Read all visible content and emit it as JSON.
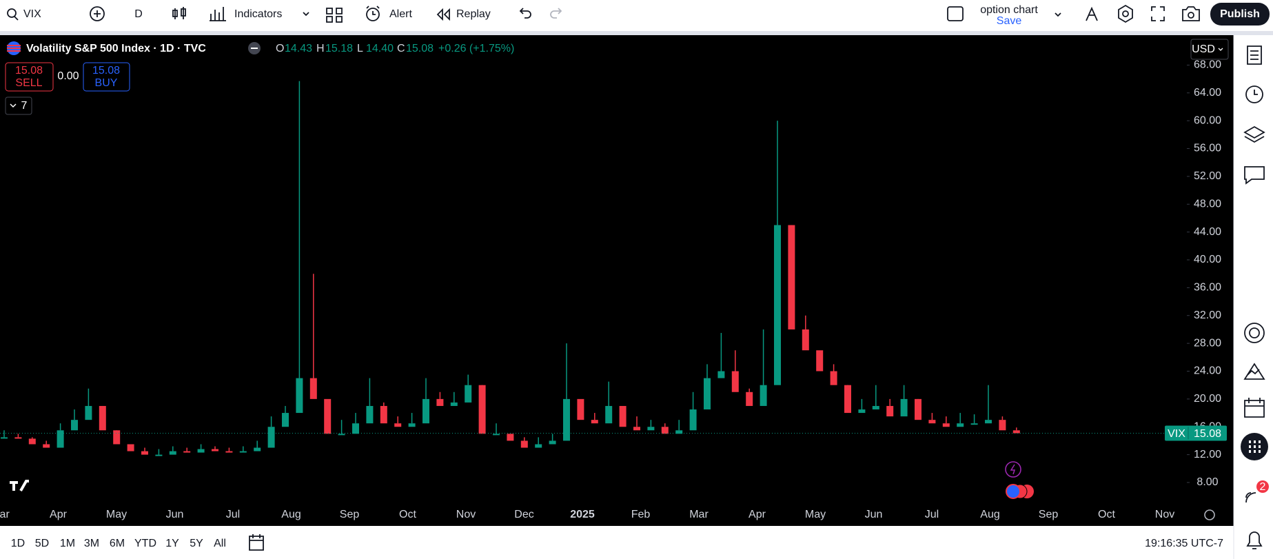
{
  "toolbar": {
    "symbol": "VIX",
    "interval": "D",
    "indicators": "Indicators",
    "alert": "Alert",
    "replay": "Replay",
    "layout_name": "option chart",
    "layout_status": "Save",
    "publish": "Publish"
  },
  "legend": {
    "title": "Volatility S&P 500 Index · 1D · TVC",
    "ohlc": [
      {
        "label": "O",
        "value": "14.43"
      },
      {
        "label": "H",
        "value": "15.18"
      },
      {
        "label": "L",
        "value": "14.40"
      },
      {
        "label": "C",
        "value": "15.08"
      }
    ],
    "change": "+0.26 (+1.75%)"
  },
  "trade": {
    "sell_price": "15.08",
    "sell": "SELL",
    "spread": "0.00",
    "buy_price": "15.08",
    "buy": "BUY"
  },
  "indicators_count": "7",
  "currency": "USD",
  "chart_data": {
    "type": "candlestick",
    "series": [
      {
        "name": "VIX",
        "color": "#089981",
        "down_color": "#f23645",
        "values": [
          14.5,
          14.3,
          13.5,
          13.0,
          15.5,
          17,
          19,
          15.5,
          13.5,
          12.5,
          12,
          12,
          12.5,
          12.3,
          12.8,
          12.5,
          12.4,
          12.5,
          13,
          16,
          18,
          23,
          20,
          15,
          15,
          16.5,
          19,
          16.5,
          16,
          16.5,
          20,
          19,
          19.5,
          22,
          15,
          15,
          14,
          13,
          13.5,
          14,
          20,
          17,
          16.5,
          19,
          16,
          15.5,
          16,
          15,
          15.5,
          18.5,
          23,
          24,
          21,
          19,
          22,
          45,
          30,
          27,
          24,
          22,
          18,
          18.5,
          19,
          17.5,
          20,
          17,
          16.5,
          16,
          16.5,
          16.5,
          17,
          15.5,
          15.08
        ],
        "high_values": [
          15.5,
          15,
          14.5,
          14,
          16.5,
          18.5,
          21.5,
          17,
          14.5,
          13.5,
          13,
          12.8,
          13.2,
          13,
          13.5,
          13.2,
          13,
          13.2,
          14,
          17.5,
          19,
          65.7,
          38,
          20,
          17,
          18,
          23,
          19.5,
          17.5,
          18,
          23,
          21,
          21,
          23.5,
          19,
          16.5,
          15,
          14.5,
          14.5,
          15,
          28,
          20,
          18,
          22.5,
          19,
          17.5,
          17,
          16.5,
          17,
          21,
          25,
          29.5,
          27,
          21.5,
          30,
          60,
          38,
          32,
          27,
          25,
          21,
          20,
          22,
          20,
          22,
          19.5,
          18,
          17.5,
          18,
          17.8,
          22,
          17.5,
          15.9
        ]
      }
    ],
    "last_value": 15.08,
    "x_labels": [
      "Mar",
      "Apr",
      "May",
      "Jun",
      "Jul",
      "Aug",
      "Sep",
      "Oct",
      "Nov",
      "Dec",
      "2025",
      "Feb",
      "Mar",
      "Apr",
      "May",
      "Jun",
      "Jul",
      "Aug",
      "Sep",
      "Oct",
      "Nov"
    ],
    "ylim": [
      4.73,
      72.3
    ],
    "yticks": [
      {
        "value": 8,
        "label": "8.00"
      },
      {
        "value": 12,
        "label": "12.00"
      },
      {
        "value": 16,
        "label": "16.00"
      },
      {
        "value": 20,
        "label": "20.00"
      },
      {
        "value": 24,
        "label": "24.00"
      },
      {
        "value": 28,
        "label": "28.00"
      },
      {
        "value": 32,
        "label": "32.00"
      },
      {
        "value": 36,
        "label": "36.00"
      },
      {
        "value": 40,
        "label": "40.00"
      },
      {
        "value": 44,
        "label": "44.00"
      },
      {
        "value": 48,
        "label": "48.00"
      },
      {
        "value": 52,
        "label": "52.00"
      },
      {
        "value": 56,
        "label": "56.00"
      },
      {
        "value": 60,
        "label": "60.00"
      },
      {
        "value": 64,
        "label": "64.00"
      },
      {
        "value": 68,
        "label": "68.00"
      }
    ]
  },
  "timeframes": [
    "1D",
    "5D",
    "1M",
    "3M",
    "6M",
    "YTD",
    "1Y",
    "5Y",
    "All"
  ],
  "clock": "19:16:35 UTC-7",
  "notifications": "2"
}
